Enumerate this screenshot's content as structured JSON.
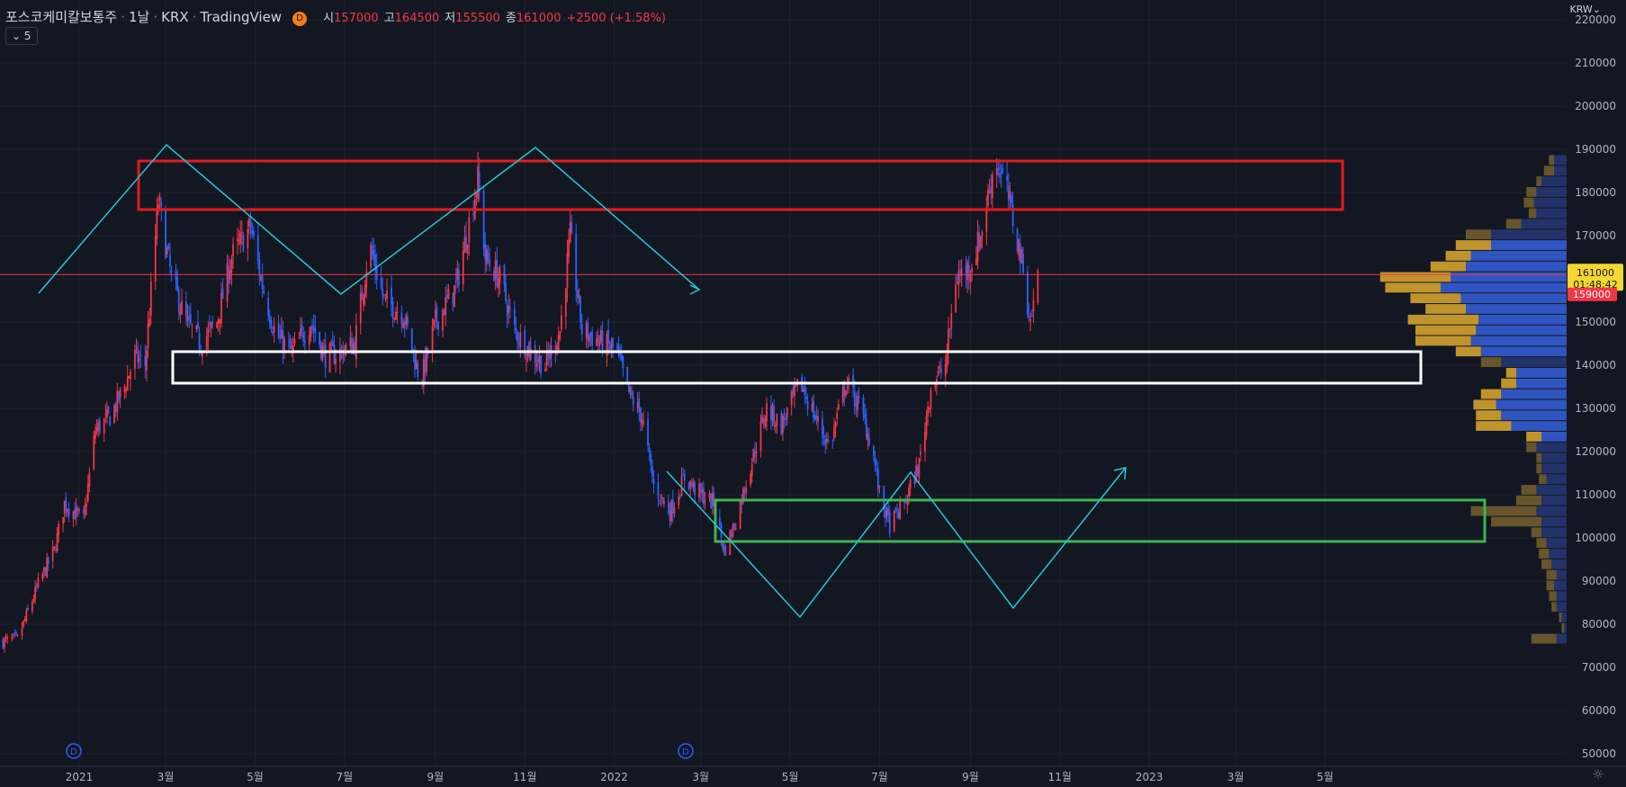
{
  "header": {
    "symbol": "포스코케미칼보통주",
    "interval": "1날",
    "exchange": "KRX",
    "source": "TradingView",
    "badge": "D",
    "open_label": "시",
    "open": "157000",
    "high_label": "고",
    "high": "164500",
    "low_label": "저",
    "low": "155500",
    "close_label": "종",
    "close": "161000",
    "change": "+2500 (+1.58%)"
  },
  "indicator_toggle": "5",
  "currency": "KRW",
  "price_labels": {
    "last": "161000",
    "countdown": "01:48:42",
    "red": "159000"
  },
  "event_badge": "D",
  "chart_data": {
    "type": "candlestick",
    "y_ticks": [
      50000,
      60000,
      70000,
      80000,
      90000,
      100000,
      110000,
      120000,
      130000,
      140000,
      150000,
      160000,
      170000,
      180000,
      190000,
      200000,
      210000,
      220000
    ],
    "ylim": [
      47000,
      223000
    ],
    "x_ticks": [
      "2021",
      "3월",
      "5월",
      "7월",
      "9월",
      "11월",
      "2022",
      "3월",
      "5월",
      "7월",
      "9월",
      "11월",
      "2023",
      "3월",
      "5월"
    ],
    "x_tick_dates": [
      "2021-01",
      "2021-03",
      "2021-05",
      "2021-07",
      "2021-09",
      "2021-11",
      "2022-01",
      "2022-03",
      "2022-05",
      "2022-07",
      "2022-09",
      "2022-11",
      "2023-01",
      "2023-03",
      "2023-05"
    ],
    "price_path": [
      [
        "2020-11-10",
        76000
      ],
      [
        "2020-11-20",
        76500
      ],
      [
        "2020-12-05",
        90000
      ],
      [
        "2020-12-15",
        97000
      ],
      [
        "2020-12-22",
        108000
      ],
      [
        "2021-01-04",
        104000
      ],
      [
        "2021-01-12",
        125000
      ],
      [
        "2021-01-22",
        128000
      ],
      [
        "2021-02-01",
        135000
      ],
      [
        "2021-02-08",
        142000
      ],
      [
        "2021-02-15",
        140000
      ],
      [
        "2021-02-24",
        178000
      ],
      [
        "2021-03-05",
        160000
      ],
      [
        "2021-03-15",
        150000
      ],
      [
        "2021-03-25",
        145000
      ],
      [
        "2021-04-05",
        150000
      ],
      [
        "2021-04-15",
        165000
      ],
      [
        "2021-04-28",
        172000
      ],
      [
        "2021-05-05",
        160000
      ],
      [
        "2021-05-15",
        147000
      ],
      [
        "2021-05-26",
        143000
      ],
      [
        "2021-06-08",
        150000
      ],
      [
        "2021-06-18",
        142000
      ],
      [
        "2021-06-28",
        143000
      ],
      [
        "2021-07-08",
        145000
      ],
      [
        "2021-07-18",
        168000
      ],
      [
        "2021-07-28",
        155000
      ],
      [
        "2021-08-10",
        152000
      ],
      [
        "2021-08-22",
        136000
      ],
      [
        "2021-09-01",
        150000
      ],
      [
        "2021-09-15",
        158000
      ],
      [
        "2021-09-30",
        183000
      ],
      [
        "2021-10-05",
        165000
      ],
      [
        "2021-10-15",
        160000
      ],
      [
        "2021-10-25",
        148000
      ],
      [
        "2021-11-05",
        143000
      ],
      [
        "2021-11-15",
        140000
      ],
      [
        "2021-11-25",
        148000
      ],
      [
        "2021-12-02",
        170000
      ],
      [
        "2021-12-10",
        148000
      ],
      [
        "2021-12-20",
        146000
      ],
      [
        "2022-01-03",
        143000
      ],
      [
        "2022-01-10",
        134000
      ],
      [
        "2022-01-20",
        128000
      ],
      [
        "2022-01-28",
        112000
      ],
      [
        "2022-02-08",
        106000
      ],
      [
        "2022-02-18",
        114000
      ],
      [
        "2022-03-01",
        110000
      ],
      [
        "2022-03-10",
        108000
      ],
      [
        "2022-03-17",
        97000
      ],
      [
        "2022-03-24",
        103000
      ],
      [
        "2022-04-05",
        118000
      ],
      [
        "2022-04-15",
        130000
      ],
      [
        "2022-04-25",
        126000
      ],
      [
        "2022-05-08",
        136000
      ],
      [
        "2022-05-18",
        128000
      ],
      [
        "2022-05-28",
        121000
      ],
      [
        "2022-06-08",
        136000
      ],
      [
        "2022-06-18",
        130000
      ],
      [
        "2022-06-26",
        121000
      ],
      [
        "2022-07-01",
        110000
      ],
      [
        "2022-07-08",
        103000
      ],
      [
        "2022-07-18",
        108000
      ],
      [
        "2022-07-28",
        117000
      ],
      [
        "2022-08-05",
        135000
      ],
      [
        "2022-08-15",
        140000
      ],
      [
        "2022-08-22",
        160000
      ],
      [
        "2022-09-01",
        163000
      ],
      [
        "2022-09-08",
        170000
      ],
      [
        "2022-09-18",
        188000
      ],
      [
        "2022-09-26",
        180000
      ],
      [
        "2022-10-05",
        166000
      ],
      [
        "2022-10-12",
        150000
      ],
      [
        "2022-10-17",
        161000
      ]
    ],
    "volume_profile_rows_from_top": [
      [
        5,
        2
      ],
      [
        5,
        4
      ],
      [
        10,
        2
      ],
      [
        12,
        4
      ],
      [
        13,
        4
      ],
      [
        12,
        3
      ],
      [
        18,
        6
      ],
      [
        30,
        10
      ],
      [
        30,
        14
      ],
      [
        38,
        10
      ],
      [
        40,
        14
      ],
      [
        46,
        28
      ],
      [
        50,
        22
      ],
      [
        42,
        20
      ],
      [
        40,
        16
      ],
      [
        35,
        28
      ],
      [
        36,
        24
      ],
      [
        38,
        22
      ],
      [
        34,
        10
      ],
      [
        26,
        8
      ],
      [
        20,
        4
      ],
      [
        20,
        6
      ],
      [
        26,
        8
      ],
      [
        28,
        9
      ],
      [
        26,
        10
      ],
      [
        22,
        14
      ],
      [
        10,
        6
      ],
      [
        12,
        4
      ],
      [
        10,
        2
      ],
      [
        10,
        2
      ],
      [
        8,
        3
      ],
      [
        12,
        6
      ],
      [
        10,
        10
      ],
      [
        12,
        26
      ],
      [
        10,
        20
      ],
      [
        10,
        4
      ],
      [
        8,
        4
      ],
      [
        7,
        4
      ],
      [
        6,
        4
      ],
      [
        4,
        4
      ],
      [
        5,
        3
      ],
      [
        4,
        3
      ],
      [
        4,
        2
      ],
      [
        2,
        1
      ],
      [
        1,
        1
      ],
      [
        4,
        10
      ]
    ]
  }
}
